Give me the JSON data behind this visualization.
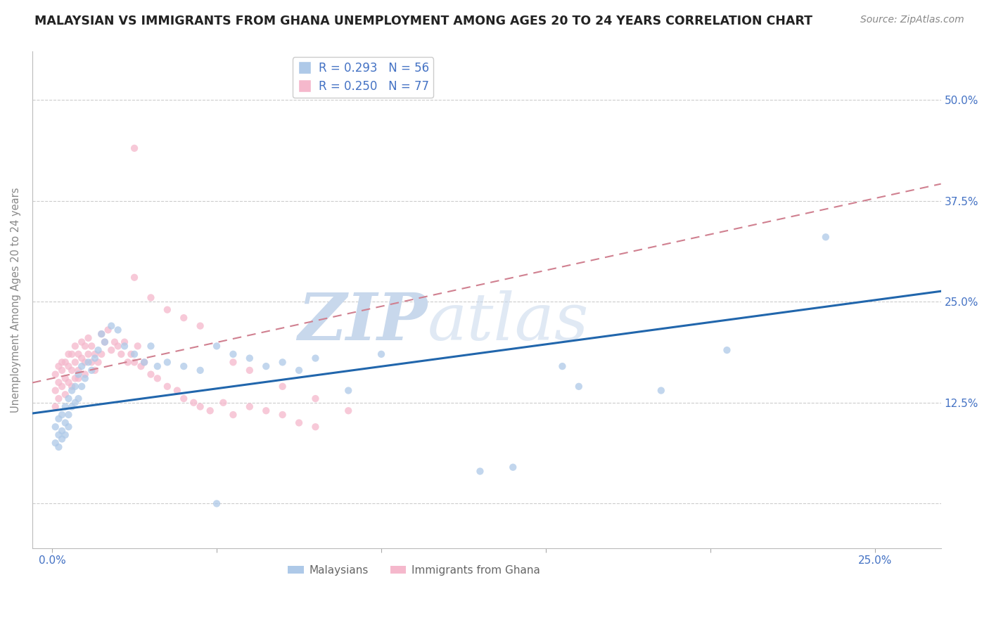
{
  "title": "MALAYSIAN VS IMMIGRANTS FROM GHANA UNEMPLOYMENT AMONG AGES 20 TO 24 YEARS CORRELATION CHART",
  "source": "Source: ZipAtlas.com",
  "ylabel": "Unemployment Among Ages 20 to 24 years",
  "y_ticks": [
    0.0,
    0.125,
    0.25,
    0.375,
    0.5
  ],
  "y_tick_labels": [
    "",
    "12.5%",
    "25.0%",
    "37.5%",
    "50.0%"
  ],
  "x_ticks": [
    0.0,
    0.05,
    0.1,
    0.15,
    0.2,
    0.25
  ],
  "x_tick_labels": [
    "0.0%",
    "",
    "",
    "",
    "",
    "25.0%"
  ],
  "xlim": [
    -0.006,
    0.27
  ],
  "ylim": [
    -0.055,
    0.56
  ],
  "legend_R1": "R = 0.293",
  "legend_N1": "N = 56",
  "legend_R2": "R = 0.250",
  "legend_N2": "N = 77",
  "color_blue": "#aec9e8",
  "color_pink": "#f5b8cc",
  "color_blue_dark": "#2166ac",
  "color_pink_line": "#d08090",
  "color_axis_labels": "#4472C4",
  "color_legend_text": "#333333",
  "background_color": "#ffffff",
  "grid_color": "#cccccc",
  "title_fontsize": 12.5,
  "source_fontsize": 10,
  "scatter_size": 55,
  "scatter_alpha": 0.75,
  "blue_line_x0": 0.0,
  "blue_line_y0": 0.115,
  "blue_line_x1": 0.25,
  "blue_line_y1": 0.252,
  "pink_line_x0": 0.0,
  "pink_line_y0": 0.155,
  "pink_line_x1": 0.25,
  "pink_line_y1": 0.378,
  "mal_x": [
    0.001,
    0.001,
    0.002,
    0.002,
    0.002,
    0.003,
    0.003,
    0.003,
    0.004,
    0.004,
    0.004,
    0.005,
    0.005,
    0.005,
    0.006,
    0.006,
    0.007,
    0.007,
    0.008,
    0.008,
    0.009,
    0.009,
    0.01,
    0.011,
    0.012,
    0.013,
    0.014,
    0.015,
    0.016,
    0.018,
    0.02,
    0.022,
    0.025,
    0.028,
    0.03,
    0.032,
    0.035,
    0.04,
    0.045,
    0.05,
    0.055,
    0.06,
    0.065,
    0.07,
    0.075,
    0.08,
    0.09,
    0.1,
    0.13,
    0.155,
    0.185,
    0.205,
    0.235,
    0.14,
    0.16,
    0.05
  ],
  "mal_y": [
    0.095,
    0.075,
    0.105,
    0.085,
    0.07,
    0.11,
    0.09,
    0.08,
    0.12,
    0.1,
    0.085,
    0.13,
    0.11,
    0.095,
    0.14,
    0.12,
    0.145,
    0.125,
    0.16,
    0.13,
    0.17,
    0.145,
    0.155,
    0.175,
    0.165,
    0.18,
    0.19,
    0.21,
    0.2,
    0.22,
    0.215,
    0.195,
    0.185,
    0.175,
    0.195,
    0.17,
    0.175,
    0.17,
    0.165,
    0.195,
    0.185,
    0.18,
    0.17,
    0.175,
    0.165,
    0.18,
    0.14,
    0.185,
    0.04,
    0.17,
    0.14,
    0.19,
    0.33,
    0.045,
    0.145,
    0.0
  ],
  "gha_x": [
    0.001,
    0.001,
    0.001,
    0.002,
    0.002,
    0.002,
    0.003,
    0.003,
    0.003,
    0.004,
    0.004,
    0.004,
    0.005,
    0.005,
    0.005,
    0.006,
    0.006,
    0.006,
    0.007,
    0.007,
    0.007,
    0.008,
    0.008,
    0.008,
    0.009,
    0.009,
    0.01,
    0.01,
    0.01,
    0.011,
    0.011,
    0.012,
    0.012,
    0.013,
    0.013,
    0.014,
    0.015,
    0.015,
    0.016,
    0.017,
    0.018,
    0.019,
    0.02,
    0.021,
    0.022,
    0.023,
    0.024,
    0.025,
    0.026,
    0.027,
    0.028,
    0.03,
    0.032,
    0.035,
    0.038,
    0.04,
    0.043,
    0.045,
    0.048,
    0.052,
    0.055,
    0.06,
    0.065,
    0.07,
    0.075,
    0.08,
    0.025,
    0.03,
    0.035,
    0.04,
    0.045,
    0.055,
    0.06,
    0.07,
    0.08,
    0.09,
    0.025
  ],
  "gha_y": [
    0.12,
    0.14,
    0.16,
    0.15,
    0.17,
    0.13,
    0.165,
    0.145,
    0.175,
    0.155,
    0.175,
    0.135,
    0.17,
    0.15,
    0.185,
    0.165,
    0.185,
    0.145,
    0.175,
    0.155,
    0.195,
    0.165,
    0.185,
    0.155,
    0.18,
    0.2,
    0.175,
    0.195,
    0.16,
    0.185,
    0.205,
    0.175,
    0.195,
    0.185,
    0.165,
    0.175,
    0.21,
    0.185,
    0.2,
    0.215,
    0.19,
    0.2,
    0.195,
    0.185,
    0.2,
    0.175,
    0.185,
    0.175,
    0.195,
    0.17,
    0.175,
    0.16,
    0.155,
    0.145,
    0.14,
    0.13,
    0.125,
    0.12,
    0.115,
    0.125,
    0.11,
    0.12,
    0.115,
    0.11,
    0.1,
    0.095,
    0.28,
    0.255,
    0.24,
    0.23,
    0.22,
    0.175,
    0.165,
    0.145,
    0.13,
    0.115,
    0.44
  ]
}
